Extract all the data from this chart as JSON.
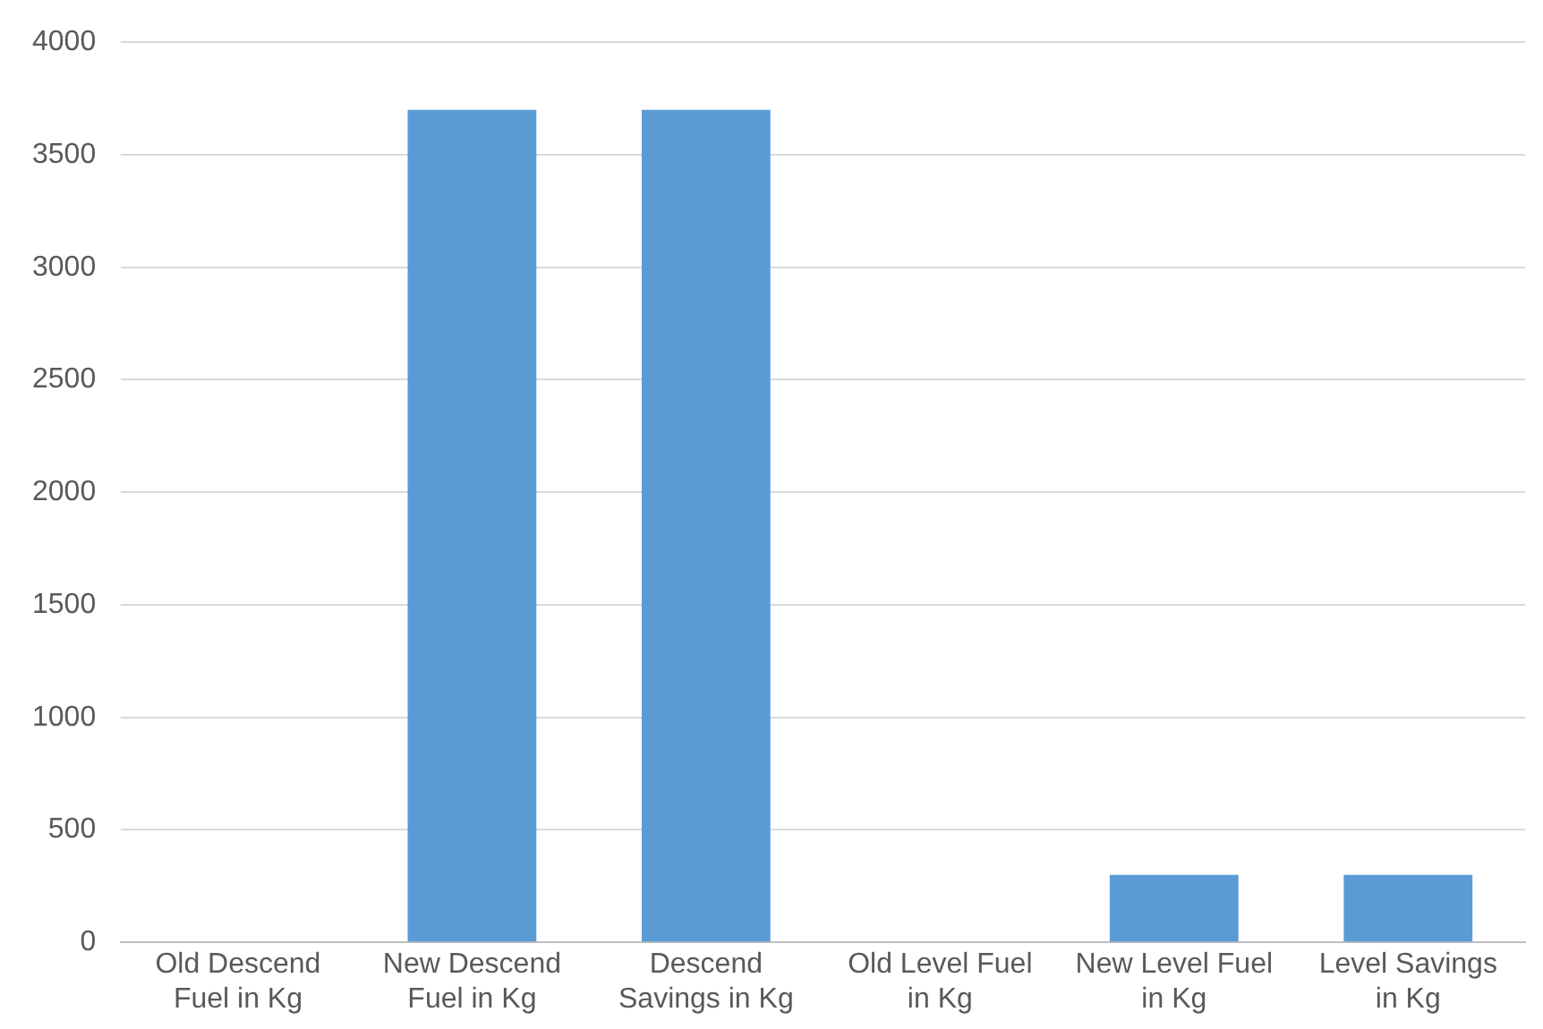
{
  "chart_data": {
    "type": "bar",
    "categories": [
      "Old Descend Fuel in Kg",
      "New Descend Fuel in Kg",
      "Descend Savings in Kg",
      "Old Level Fuel in Kg",
      "New Level Fuel in Kg",
      "Level Savings in Kg"
    ],
    "values": [
      0,
      3700,
      3700,
      0,
      300,
      300
    ],
    "color": "#5b9bd5",
    "ylim": [
      0,
      4000
    ],
    "yticks": [
      0,
      500,
      1000,
      1500,
      2000,
      2500,
      3000,
      3500,
      4000
    ],
    "grid": "y",
    "legend": false
  }
}
